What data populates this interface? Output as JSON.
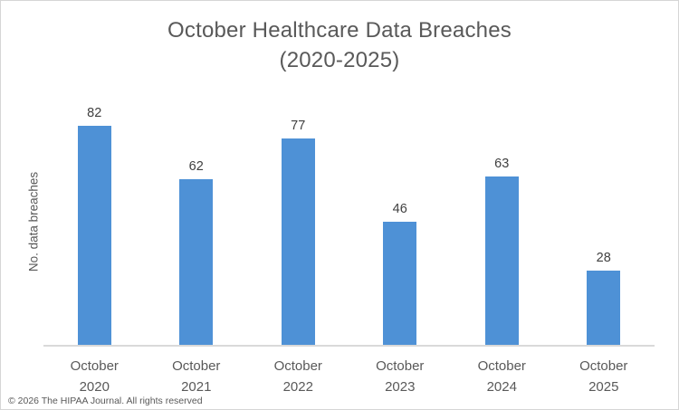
{
  "chart_data": {
    "type": "bar",
    "title": "October Healthcare Data Breaches",
    "subtitle": "(2020-2025)",
    "xlabel": "",
    "ylabel": "No. data breaches",
    "categories": [
      "October 2020",
      "October 2021",
      "October 2022",
      "October 2023",
      "October 2024",
      "October 2025"
    ],
    "values": [
      82,
      62,
      77,
      46,
      63,
      28
    ],
    "ylim": [
      0,
      93
    ],
    "grid": false,
    "legend": "none",
    "data_labels": true,
    "bar_color": "#4e91d6",
    "axis_line_color": "#d9d9d9"
  },
  "footer": {
    "copyright": "© 2026 The HIPAA Journal. All rights reserved"
  }
}
